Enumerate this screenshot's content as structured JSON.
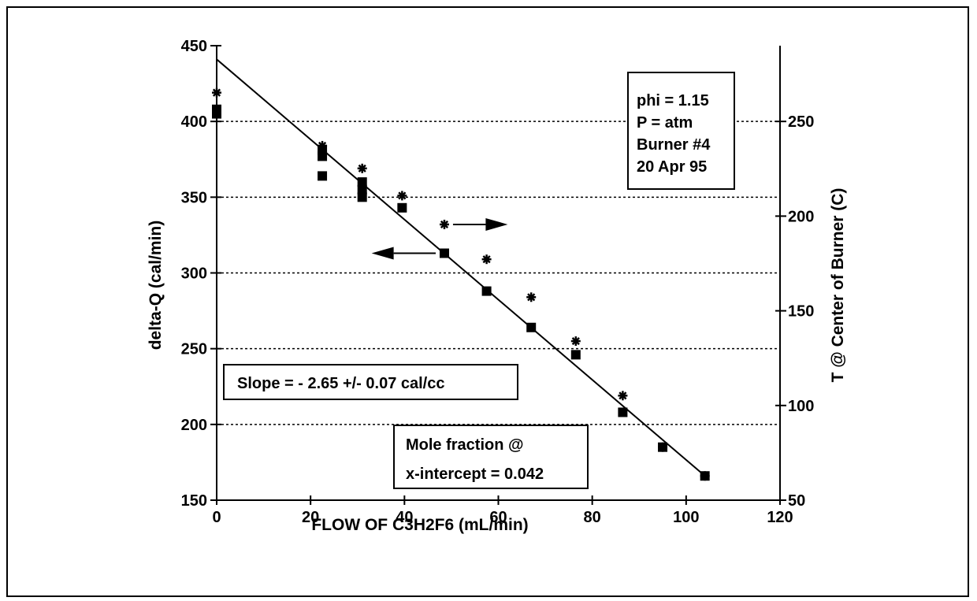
{
  "chart_data": {
    "type": "scatter",
    "xlabel": "FLOW OF C3H2F6 (mL/min)",
    "ylabel": "delta-Q (cal/min)",
    "y2label": "T @ Center of Burner (C)",
    "xlim": [
      0,
      120
    ],
    "ylim": [
      150,
      450
    ],
    "y2lim": [
      50,
      290
    ],
    "x_ticks": [
      0,
      20,
      40,
      60,
      80,
      100,
      120
    ],
    "y_ticks": [
      150,
      200,
      250,
      300,
      350,
      400,
      450
    ],
    "y2_ticks": [
      50,
      100,
      150,
      200,
      250
    ],
    "grid": "horizontal-dotted",
    "series": [
      {
        "name": "",
        "marker": "square",
        "axis": "left",
        "x": [
          0,
          0,
          22.5,
          22.5,
          22.5,
          31,
          31,
          31,
          39.5,
          48.5,
          57.5,
          67,
          76.5,
          86.5,
          95,
          104
        ],
        "y": [
          405,
          408,
          364,
          377,
          381,
          350,
          355,
          360,
          343,
          313,
          288,
          264,
          246,
          208,
          185,
          166
        ]
      },
      {
        "name": "",
        "marker": "asterisk",
        "axis": "left",
        "x": [
          0,
          22.5,
          31,
          39.5,
          48.5,
          57.5,
          67,
          76.5,
          86.5,
          95,
          104
        ],
        "y": [
          419,
          384,
          369,
          351,
          332,
          309,
          284,
          255,
          219,
          185,
          166
        ]
      }
    ],
    "fit_line": {
      "x": [
        0,
        104
      ],
      "y": [
        441,
        166
      ]
    },
    "annotations": {
      "conditions": [
        "phi = 1.15",
        "P = atm",
        "Burner #4",
        "20  Apr 95"
      ],
      "slope": "Slope = - 2.65 +/- 0.07 cal/cc",
      "mole_fraction": [
        "Mole fraction @",
        "x-intercept  = 0.042"
      ]
    },
    "arrows": [
      {
        "direction": "right",
        "from_x": 49,
        "to_x": 62,
        "y": 332
      },
      {
        "direction": "left",
        "from_x": 48,
        "to_x": 33,
        "y": 313
      }
    ]
  }
}
